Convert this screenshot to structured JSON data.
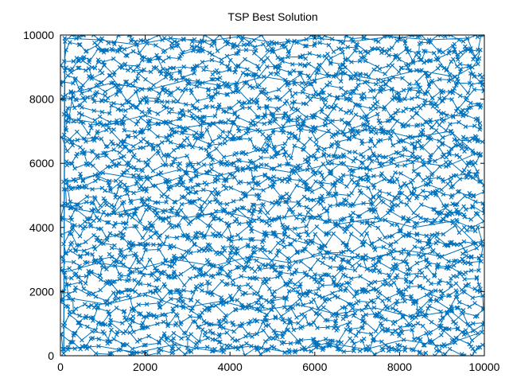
{
  "chart_data": {
    "type": "line",
    "title": "TSP Best Solution",
    "xlabel": "",
    "ylabel": "",
    "xlim": [
      0,
      10000
    ],
    "ylim": [
      0,
      10000
    ],
    "x_ticks": [
      0,
      2000,
      4000,
      6000,
      8000,
      10000
    ],
    "y_ticks": [
      0,
      2000,
      4000,
      6000,
      8000,
      10000
    ],
    "x_tick_labels": [
      "0",
      "2000",
      "4000",
      "6000",
      "8000",
      "10000"
    ],
    "y_tick_labels": [
      "0",
      "2000",
      "4000",
      "6000",
      "8000",
      "10000"
    ],
    "grid": false,
    "legend": "none",
    "marker": "x",
    "series": [
      {
        "color": "#0072bd",
        "approx_num_points": 10000,
        "points_sample": [
          [
            100,
            9900
          ],
          [
            900,
            9850
          ],
          [
            1800,
            9700
          ],
          [
            2600,
            9900
          ],
          [
            3400,
            9800
          ],
          [
            4200,
            9950
          ],
          [
            5100,
            9750
          ],
          [
            6000,
            9900
          ],
          [
            6900,
            9800
          ],
          [
            7800,
            9950
          ],
          [
            8700,
            9850
          ],
          [
            9600,
            9900
          ],
          [
            9850,
            9100
          ],
          [
            9300,
            8700
          ],
          [
            8400,
            8900
          ],
          [
            7500,
            8600
          ],
          [
            6600,
            8800
          ],
          [
            5700,
            8500
          ],
          [
            4800,
            8700
          ],
          [
            3900,
            8400
          ],
          [
            3000,
            8600
          ],
          [
            2100,
            8300
          ],
          [
            1200,
            8500
          ],
          [
            300,
            8200
          ],
          [
            200,
            7400
          ],
          [
            1100,
            7200
          ],
          [
            2000,
            7500
          ],
          [
            2900,
            7100
          ],
          [
            3800,
            7300
          ],
          [
            4700,
            7000
          ],
          [
            5600,
            7200
          ],
          [
            6500,
            6900
          ],
          [
            7400,
            7100
          ],
          [
            8300,
            6800
          ],
          [
            9200,
            7000
          ],
          [
            9800,
            6300
          ],
          [
            9100,
            5900
          ],
          [
            8200,
            6100
          ],
          [
            7300,
            5800
          ],
          [
            6400,
            6000
          ],
          [
            5500,
            5700
          ],
          [
            4600,
            5900
          ],
          [
            3700,
            5600
          ],
          [
            2800,
            5800
          ],
          [
            1900,
            5500
          ],
          [
            1000,
            5700
          ],
          [
            150,
            5400
          ],
          [
            250,
            4600
          ],
          [
            1150,
            4400
          ],
          [
            2050,
            4700
          ],
          [
            2950,
            4300
          ],
          [
            3850,
            4500
          ],
          [
            4750,
            4200
          ],
          [
            5650,
            4400
          ],
          [
            6550,
            4100
          ],
          [
            7450,
            4300
          ],
          [
            8350,
            4000
          ],
          [
            9250,
            4200
          ],
          [
            9800,
            3500
          ],
          [
            9000,
            3100
          ],
          [
            8100,
            3300
          ],
          [
            7200,
            3000
          ],
          [
            6300,
            3200
          ],
          [
            5400,
            2900
          ],
          [
            4500,
            3100
          ],
          [
            3600,
            2800
          ],
          [
            2700,
            3000
          ],
          [
            1800,
            2700
          ],
          [
            900,
            2900
          ],
          [
            100,
            2600
          ],
          [
            200,
            1800
          ],
          [
            1100,
            1600
          ],
          [
            2000,
            1900
          ],
          [
            2900,
            1500
          ],
          [
            3800,
            1700
          ],
          [
            4700,
            1400
          ],
          [
            5600,
            1600
          ],
          [
            6500,
            1300
          ],
          [
            7400,
            1500
          ],
          [
            8300,
            1200
          ],
          [
            9200,
            1400
          ],
          [
            9850,
            700
          ],
          [
            9000,
            300
          ],
          [
            8100,
            500
          ],
          [
            7200,
            200
          ],
          [
            6300,
            400
          ],
          [
            5400,
            100
          ],
          [
            4500,
            300
          ],
          [
            3600,
            150
          ],
          [
            2700,
            350
          ],
          [
            1800,
            100
          ],
          [
            900,
            300
          ],
          [
            80,
            200
          ]
        ]
      }
    ]
  }
}
